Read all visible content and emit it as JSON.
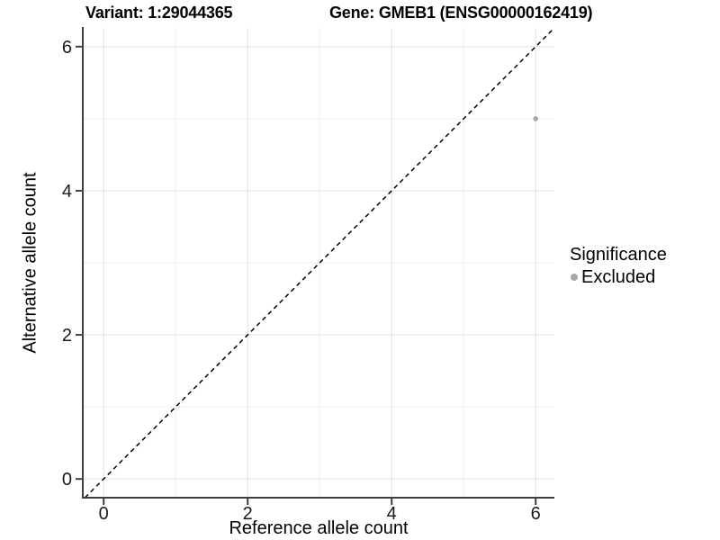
{
  "header": {
    "variant_title": "Variant: 1:29044365",
    "gene_title": "Gene: GMEB1 (ENSG00000162419)"
  },
  "chart_data": {
    "type": "scatter",
    "title_left": "Variant: 1:29044365",
    "title_right": "Gene: GMEB1 (ENSG00000162419)",
    "xlabel": "Reference allele count",
    "ylabel": "Alternative allele count",
    "xlim": [
      -0.29,
      6.26
    ],
    "ylim": [
      -0.26,
      6.26
    ],
    "xticks": [
      0,
      2,
      4,
      6
    ],
    "yticks": [
      0,
      2,
      4,
      6
    ],
    "x_minor_gridlines": [
      1,
      3,
      5
    ],
    "y_minor_gridlines": [
      1,
      3,
      5
    ],
    "grid": true,
    "series": [
      {
        "name": "Excluded",
        "color": "#a8a8a8",
        "points": [
          {
            "x": 6,
            "y": 5
          }
        ]
      }
    ],
    "reference_line": {
      "type": "identity",
      "equation": "y = x",
      "style": "dashed",
      "color": "#000000"
    },
    "legend": {
      "title": "Significance",
      "position": "right",
      "items": [
        {
          "label": "Excluded",
          "color": "#a8a8a8"
        }
      ]
    },
    "colors": {
      "background": "#ffffff",
      "grid_major": "#e2e2e2",
      "grid_minor": "#eeeeee",
      "axis": "#404040",
      "tick_text": "#1a1a1a",
      "point": "#a8a8a8",
      "identity_line": "#000000"
    }
  }
}
